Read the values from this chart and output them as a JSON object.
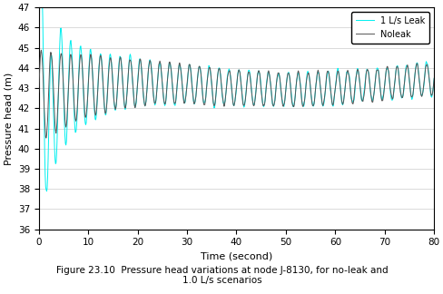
{
  "title": "Figure 23.10  Pressure head variations at node J-8130, for no-leak and\n1.0 L/s scenarios",
  "xlabel": "Time (second)",
  "ylabel": "Pressure head (m)",
  "xlim": [
    0,
    80
  ],
  "ylim": [
    36,
    47
  ],
  "yticks": [
    36,
    37,
    38,
    39,
    40,
    41,
    42,
    43,
    44,
    45,
    46,
    47
  ],
  "xticks": [
    0,
    10,
    20,
    30,
    40,
    50,
    60,
    70,
    80
  ],
  "legend_labels": [
    "1 L/s Leak",
    "Noleak"
  ],
  "leak_color": "#00EFEF",
  "noleak_color": "#555555",
  "figsize": [
    4.89,
    3.24
  ],
  "dpi": 100
}
